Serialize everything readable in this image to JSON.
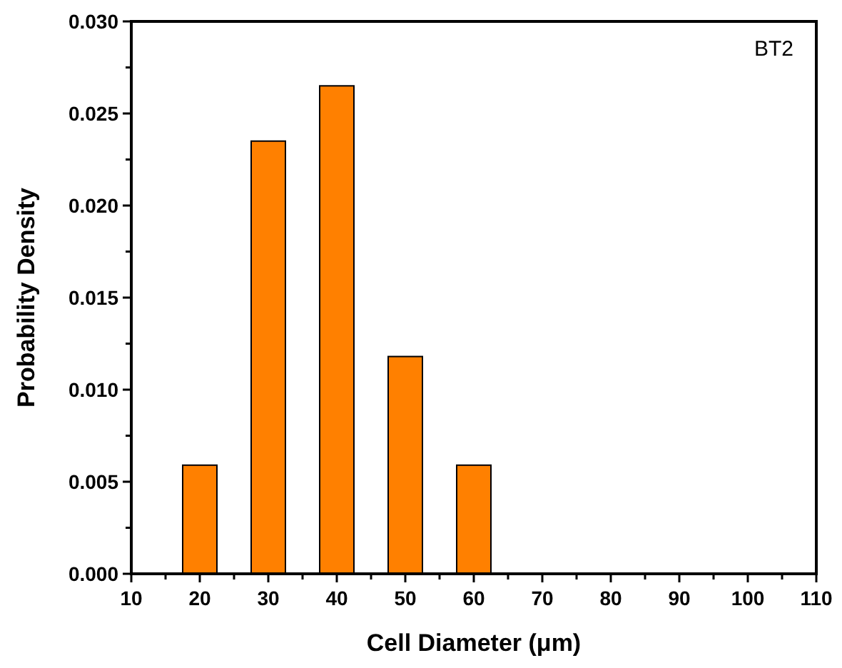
{
  "chart_data": {
    "type": "bar",
    "xlabel": "Cell Diameter (μm)",
    "ylabel": "Probability Density",
    "x": [
      20,
      30,
      40,
      50,
      60
    ],
    "values": [
      0.0059,
      0.0235,
      0.0265,
      0.0118,
      0.0059
    ],
    "color": "#ff8000",
    "xlim": [
      10,
      110
    ],
    "xticks": [
      10,
      {
        "value": 15,
        "label": null
      },
      20,
      {
        "value": 25,
        "label": null
      },
      30,
      {
        "value": 35,
        "label": null
      },
      40,
      {
        "value": 45,
        "label": null
      },
      50,
      {
        "value": 55,
        "label": null
      },
      60,
      {
        "value": 65,
        "label": null
      },
      70,
      {
        "value": 75,
        "label": null
      },
      80,
      {
        "value": 85,
        "label": null
      },
      90,
      {
        "value": 95,
        "label": null
      },
      100,
      {
        "value": 105,
        "label": null
      },
      110
    ],
    "ylim": [
      0,
      0.03
    ],
    "yticks": [
      {
        "value": 0,
        "label": "0.000"
      },
      {
        "value": 0.0025,
        "label": null
      },
      {
        "value": 0.005,
        "label": "0.005"
      },
      {
        "value": 0.0075,
        "label": null
      },
      {
        "value": 0.01,
        "label": "0.010"
      },
      {
        "value": 0.0125,
        "label": null
      },
      {
        "value": 0.015,
        "label": "0.015"
      },
      {
        "value": 0.0175,
        "label": null
      },
      {
        "value": 0.02,
        "label": "0.020"
      },
      {
        "value": 0.0225,
        "label": null
      },
      {
        "value": 0.025,
        "label": "0.025"
      },
      {
        "value": 0.0275,
        "label": null
      },
      {
        "value": 0.03,
        "label": "0.030"
      }
    ],
    "annotations": [
      "BT2"
    ]
  }
}
